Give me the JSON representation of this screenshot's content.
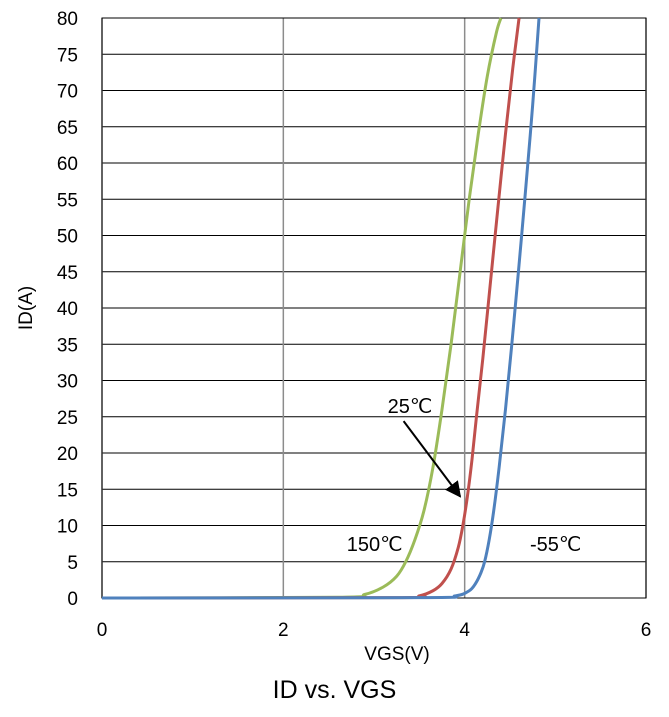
{
  "chart_data": {
    "type": "line",
    "title": "ID vs. VGS",
    "xlabel": "VGS(V)",
    "ylabel": "ID(A)",
    "xlim": [
      0,
      6
    ],
    "ylim": [
      0,
      80
    ],
    "xticks": [
      0,
      2,
      4,
      6
    ],
    "yticks": [
      0,
      5,
      10,
      15,
      20,
      25,
      30,
      35,
      40,
      45,
      50,
      55,
      60,
      65,
      70,
      75,
      80
    ],
    "grid": true,
    "series": [
      {
        "color": "#9BBB59",
        "x": [
          0,
          2.6,
          2.9,
          3.1,
          3.25,
          3.35,
          3.45,
          3.55,
          3.65,
          3.75,
          3.85,
          3.95,
          4.05,
          4.15,
          4.25,
          4.35,
          4.4
        ],
        "y": [
          0,
          0.1,
          0.5,
          1.5,
          3,
          5,
          8,
          12,
          18,
          26,
          35,
          45,
          55,
          64,
          72,
          78,
          80
        ]
      },
      {
        "color": "#C0504D",
        "x": [
          0,
          3.25,
          3.5,
          3.65,
          3.75,
          3.85,
          3.93,
          3.98,
          4.03,
          4.08,
          4.13,
          4.2,
          4.28,
          4.36,
          4.45,
          4.53,
          4.6
        ],
        "y": [
          0,
          0.05,
          0.3,
          1,
          2,
          4,
          7,
          10,
          14,
          19,
          25,
          33,
          43,
          53,
          64,
          73,
          80
        ]
      },
      {
        "color": "#4F81BD",
        "x": [
          0,
          3.5,
          3.9,
          4.05,
          4.12,
          4.18,
          4.22,
          4.27,
          4.32,
          4.38,
          4.45,
          4.52,
          4.6,
          4.67,
          4.75,
          4.82
        ],
        "y": [
          0,
          0.05,
          0.3,
          1,
          2,
          3.5,
          5,
          8,
          12,
          18,
          26,
          35,
          46,
          56,
          68,
          80
        ]
      }
    ],
    "annotations": [
      {
        "text": "150℃",
        "x": 2.7,
        "y": 6.5
      },
      {
        "text": "25℃",
        "x": 3.15,
        "y": 25.5,
        "arrow_to": [
          3.95,
          14
        ]
      },
      {
        "text": "-55℃",
        "x": 4.72,
        "y": 6.5
      }
    ]
  }
}
